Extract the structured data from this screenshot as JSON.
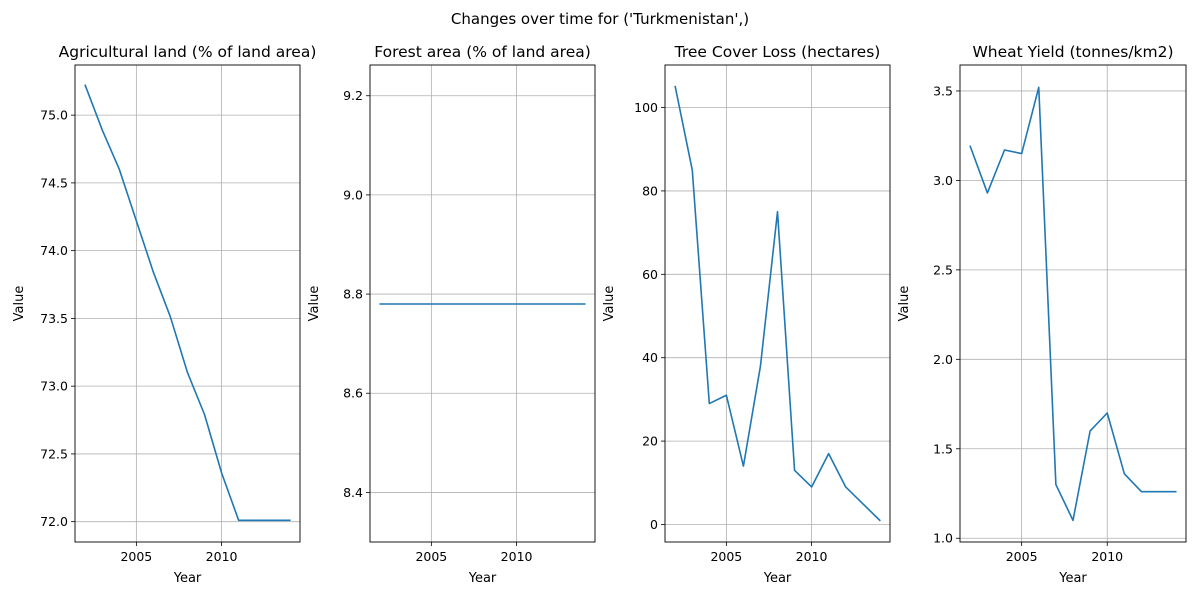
{
  "figure": {
    "suptitle": "Changes over time for ('Turkmenistan',)",
    "line_color": "#1f77b4",
    "grid": true
  },
  "chart_data": [
    {
      "type": "line",
      "title": "Agricultural land (% of land area)",
      "xlabel": "Year",
      "ylabel": "Value",
      "xlim": [
        2001.4,
        2014.6
      ],
      "ylim": [
        71.85,
        75.37
      ],
      "xticks": [
        2005,
        2010
      ],
      "yticks": [
        72.0,
        72.5,
        73.0,
        73.5,
        74.0,
        74.5,
        75.0
      ],
      "ytick_labels": [
        "72.0",
        "72.5",
        "73.0",
        "73.5",
        "74.0",
        "74.5",
        "75.0"
      ],
      "x": [
        2002,
        2003,
        2004,
        2005,
        2006,
        2007,
        2008,
        2009,
        2010,
        2011,
        2012,
        2013,
        2014
      ],
      "values": [
        75.22,
        74.89,
        74.6,
        74.22,
        73.84,
        73.51,
        73.1,
        72.79,
        72.36,
        72.01,
        72.01,
        72.01,
        72.01
      ]
    },
    {
      "type": "line",
      "title": "Forest area (% of land area)",
      "xlabel": "Year",
      "ylabel": "Value",
      "xlim": [
        2001.4,
        2014.6
      ],
      "ylim": [
        8.3,
        9.262
      ],
      "xticks": [
        2005,
        2010
      ],
      "yticks": [
        8.4,
        8.6,
        8.8,
        9.0,
        9.2
      ],
      "ytick_labels": [
        "8.4",
        "8.6",
        "8.8",
        "9.0",
        "9.2"
      ],
      "x": [
        2002,
        2003,
        2004,
        2005,
        2006,
        2007,
        2008,
        2009,
        2010,
        2011,
        2012,
        2013,
        2014
      ],
      "values": [
        8.78,
        8.78,
        8.78,
        8.78,
        8.78,
        8.78,
        8.78,
        8.78,
        8.78,
        8.78,
        8.78,
        8.78,
        8.78
      ]
    },
    {
      "type": "line",
      "title": "Tree Cover Loss (hectares)",
      "xlabel": "Year",
      "ylabel": "Value",
      "xlim": [
        2001.4,
        2014.6
      ],
      "ylim": [
        -4.2,
        110.2
      ],
      "xticks": [
        2005,
        2010
      ],
      "yticks": [
        0,
        20,
        40,
        60,
        80,
        100
      ],
      "ytick_labels": [
        "0",
        "20",
        "40",
        "60",
        "80",
        "100"
      ],
      "x": [
        2002,
        2003,
        2004,
        2005,
        2006,
        2007,
        2008,
        2009,
        2010,
        2011,
        2012,
        2013,
        2014
      ],
      "values": [
        105,
        85,
        29,
        31,
        14,
        38,
        75,
        13,
        9,
        17,
        9,
        5,
        1
      ]
    },
    {
      "type": "line",
      "title": "Wheat Yield (tonnes/km2)",
      "xlabel": "Year",
      "ylabel": "Value",
      "xlim": [
        2001.4,
        2014.6
      ],
      "ylim": [
        0.979,
        3.645
      ],
      "xticks": [
        2005,
        2010
      ],
      "yticks": [
        1.0,
        1.5,
        2.0,
        2.5,
        3.0,
        3.5
      ],
      "ytick_labels": [
        "1.0",
        "1.5",
        "2.0",
        "2.5",
        "3.0",
        "3.5"
      ],
      "x": [
        2002,
        2003,
        2004,
        2005,
        2006,
        2007,
        2008,
        2009,
        2010,
        2011,
        2012,
        2013,
        2014
      ],
      "values": [
        3.19,
        2.93,
        3.17,
        3.15,
        3.52,
        1.3,
        1.1,
        1.6,
        1.7,
        1.36,
        1.26,
        1.26,
        1.26
      ]
    }
  ]
}
